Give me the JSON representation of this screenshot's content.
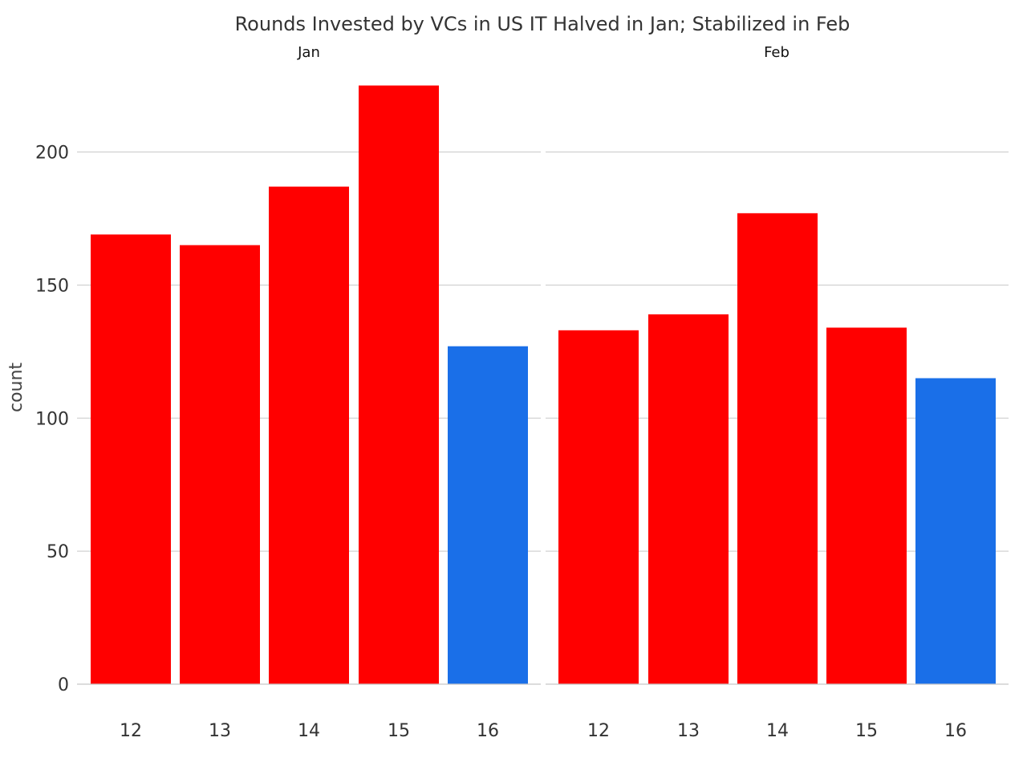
{
  "chart_data": {
    "type": "bar",
    "title": "Rounds Invested by VCs in US IT Halved in Jan; Stabilized in Feb",
    "ylabel": "count",
    "xlabel": "",
    "ylim": [
      0,
      230
    ],
    "yticks": [
      0,
      50,
      100,
      150,
      200
    ],
    "grid": true,
    "categories": [
      "12",
      "13",
      "14",
      "15",
      "16"
    ],
    "panels": [
      {
        "label": "Jan",
        "values": [
          169,
          165,
          187,
          225,
          127
        ],
        "colors": [
          "#ff0000",
          "#ff0000",
          "#ff0000",
          "#ff0000",
          "#1a6fe8"
        ]
      },
      {
        "label": "Feb",
        "values": [
          133,
          139,
          177,
          134,
          115
        ],
        "colors": [
          "#ff0000",
          "#ff0000",
          "#ff0000",
          "#ff0000",
          "#1a6fe8"
        ]
      }
    ]
  }
}
